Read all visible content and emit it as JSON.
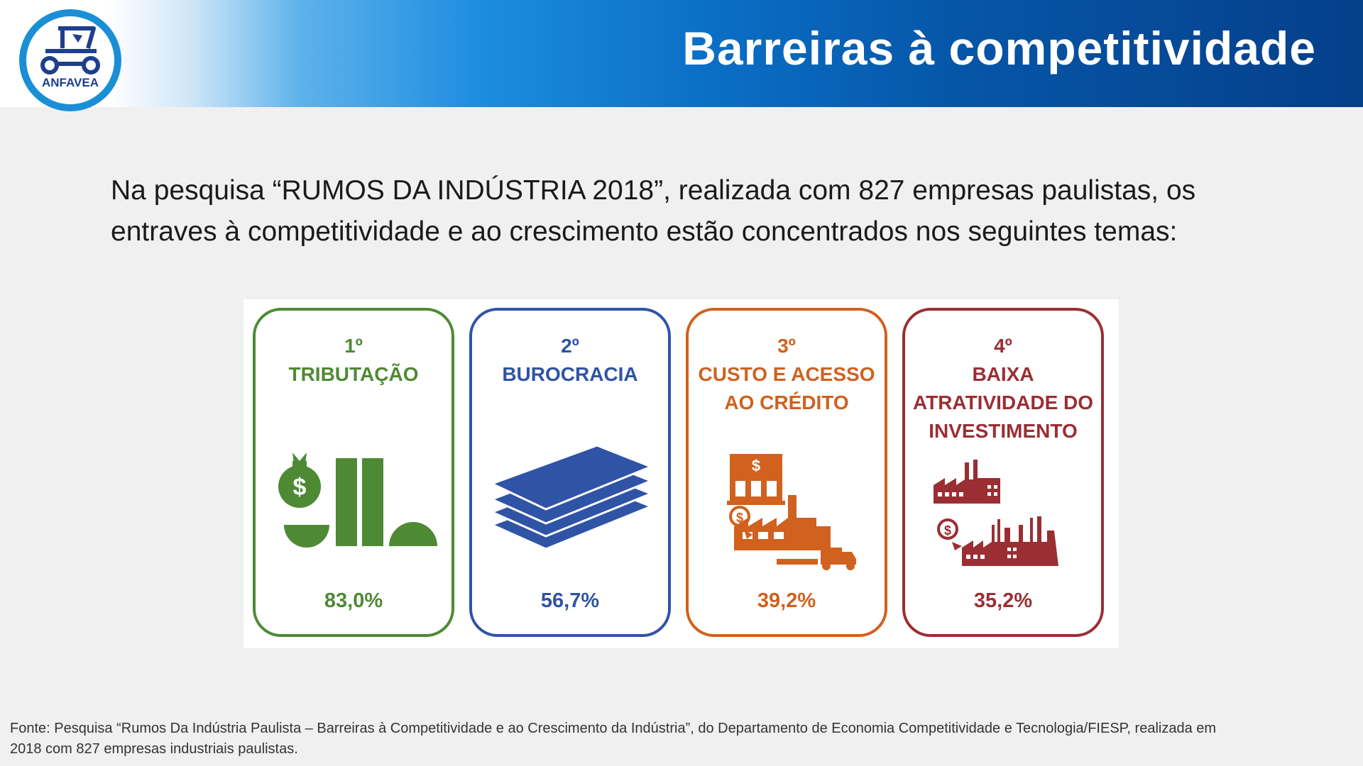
{
  "header": {
    "title": "Barreiras à competitividade",
    "logo_text": "ANFAVEA",
    "colors": {
      "gradient_start": "#ffffff",
      "gradient_end": "#053f8a"
    }
  },
  "intro": {
    "line1": "Na pesquisa “RUMOS DA INDÚSTRIA 2018”, realizada com 827 empresas paulistas, os",
    "line2": "entraves à competitividade e ao crescimento estão concentrados nos seguintes temas:"
  },
  "cards": [
    {
      "rank": "1º",
      "label": "TRIBUTAÇÃO",
      "label2": "",
      "label3": "",
      "percent": "83,0%",
      "color": "#4e8a34",
      "icon": "tax-money-bars-icon"
    },
    {
      "rank": "2º",
      "label": "BUROCRACIA",
      "label2": "",
      "label3": "",
      "percent": "56,7%",
      "color": "#2f53a5",
      "icon": "paper-stack-icon"
    },
    {
      "rank": "3º",
      "label": "CUSTO E ACESSO",
      "label2": "AO CRÉDITO",
      "label3": "",
      "percent": "39,2%",
      "color": "#d0611e",
      "icon": "bank-factory-truck-icon"
    },
    {
      "rank": "4º",
      "label": "BAIXA",
      "label2": "ATRATIVIDADE DO",
      "label3": "INVESTIMENTO",
      "percent": "35,2%",
      "color": "#9b2e33",
      "icon": "factories-icon"
    }
  ],
  "source": {
    "line1": "Fonte: Pesquisa “Rumos Da Indústria Paulista – Barreiras à Competitividade e ao Crescimento da Indústria”, do Departamento de Economia Competitividade e Tecnologia/FIESP, realizada em",
    "line2": "2018 com 827 empresas industriais paulistas."
  }
}
